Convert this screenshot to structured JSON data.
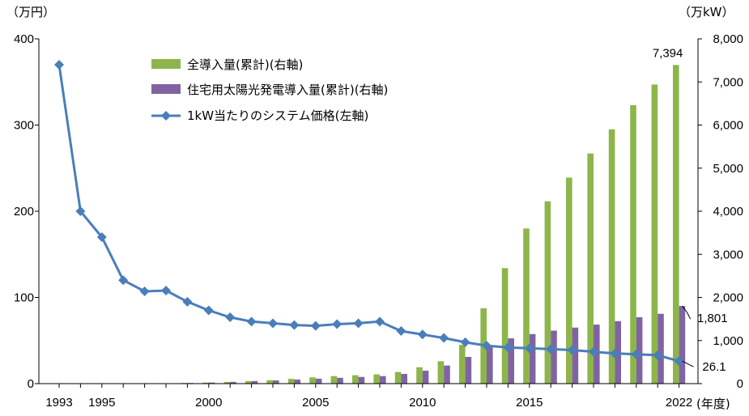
{
  "chart_data": {
    "type": "bar+line",
    "left_unit": "（万円）",
    "right_unit": "（万kW）",
    "x_unit": "(年度)",
    "x_tick_labels": [
      "1993",
      "1995",
      "2000",
      "2005",
      "2010",
      "2015",
      "2022"
    ],
    "y_left_ticks": [
      "400",
      "300",
      "200",
      "100",
      "0"
    ],
    "y_right_ticks": [
      "8,000",
      "7,000",
      "6,000",
      "5,000",
      "4,000",
      "3,000",
      "2,000",
      "1,000",
      "0"
    ],
    "y_left_range": [
      0,
      400
    ],
    "y_right_range": [
      0,
      8000
    ],
    "years": [
      1993,
      1994,
      1995,
      1996,
      1997,
      1998,
      1999,
      2000,
      2001,
      2002,
      2003,
      2004,
      2005,
      2006,
      2007,
      2008,
      2009,
      2010,
      2011,
      2012,
      2013,
      2014,
      2015,
      2016,
      2017,
      2018,
      2019,
      2020,
      2021,
      2022
    ],
    "series": [
      {
        "name": "全導入量(累計)(右軸)",
        "axis": "right",
        "kind": "bar",
        "color": "#8db54a",
        "values": [
          0,
          0,
          0,
          0,
          0,
          5,
          15,
          25,
          40,
          60,
          80,
          110,
          145,
          175,
          195,
          215,
          270,
          380,
          520,
          900,
          1750,
          2680,
          3600,
          4230,
          4780,
          5340,
          5900,
          6460,
          6940,
          7394
        ]
      },
      {
        "name": "住宅用太陽光発電導入量(累計)(右軸)",
        "axis": "right",
        "kind": "bar",
        "color": "#8064a2",
        "values": [
          0,
          0,
          0,
          0,
          0,
          5,
          15,
          25,
          40,
          60,
          75,
          95,
          115,
          135,
          155,
          175,
          225,
          300,
          420,
          620,
          850,
          1050,
          1150,
          1230,
          1300,
          1370,
          1450,
          1540,
          1620,
          1801
        ]
      },
      {
        "name": "1kW当たりのシステム価格(左軸)",
        "axis": "left",
        "kind": "line",
        "color": "#4a7ebb",
        "values": [
          370,
          200,
          170,
          120,
          107,
          108,
          95,
          85,
          77,
          72,
          70,
          68,
          67,
          69,
          70,
          72,
          61,
          57,
          53,
          48,
          44,
          42,
          41,
          40,
          39,
          37,
          35,
          34,
          33,
          26.1
        ]
      }
    ],
    "annotations": [
      "7,394",
      "1,801",
      "26.1"
    ]
  }
}
